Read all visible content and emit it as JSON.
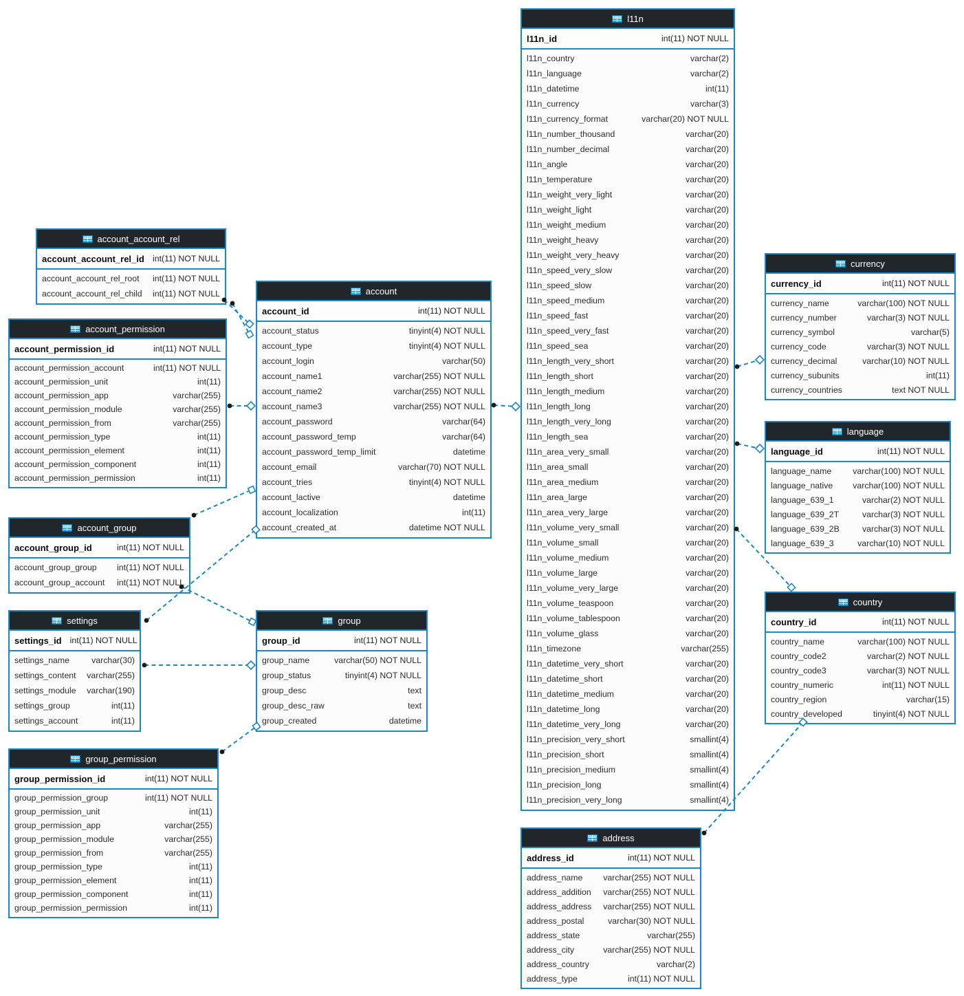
{
  "diagram": {
    "title": "database schema diagram",
    "colors": {
      "accent": "#1789c9",
      "header_bg": "#21262b",
      "header_text": "#ffffff",
      "row_bg": "#fcfcfc",
      "text": "#2b2b2b",
      "line": "#1789c9",
      "dot": "#1b1b1b",
      "icon": "#2ea9e0",
      "icon_light": "#8ed6f5"
    },
    "icon_name": "table-icon",
    "tables": [
      {
        "id": "l11n",
        "title": "l11n",
        "pk": {
          "name": "l11n_id",
          "type": "int(11) NOT NULL"
        },
        "columns": [
          {
            "name": "l11n_country",
            "type": "varchar(2)"
          },
          {
            "name": "l11n_language",
            "type": "varchar(2)"
          },
          {
            "name": "l11n_datetime",
            "type": "int(11)"
          },
          {
            "name": "l11n_currency",
            "type": "varchar(3)"
          },
          {
            "name": "l11n_currency_format",
            "type": "varchar(20) NOT NULL"
          },
          {
            "name": "l11n_number_thousand",
            "type": "varchar(20)"
          },
          {
            "name": "l11n_number_decimal",
            "type": "varchar(20)"
          },
          {
            "name": "l11n_angle",
            "type": "varchar(20)"
          },
          {
            "name": "l11n_temperature",
            "type": "varchar(20)"
          },
          {
            "name": "l11n_weight_very_light",
            "type": "varchar(20)"
          },
          {
            "name": "l11n_weight_light",
            "type": "varchar(20)"
          },
          {
            "name": "l11n_weight_medium",
            "type": "varchar(20)"
          },
          {
            "name": "l11n_weight_heavy",
            "type": "varchar(20)"
          },
          {
            "name": "l11n_weight_very_heavy",
            "type": "varchar(20)"
          },
          {
            "name": "l11n_speed_very_slow",
            "type": "varchar(20)"
          },
          {
            "name": "l11n_speed_slow",
            "type": "varchar(20)"
          },
          {
            "name": "l11n_speed_medium",
            "type": "varchar(20)"
          },
          {
            "name": "l11n_speed_fast",
            "type": "varchar(20)"
          },
          {
            "name": "l11n_speed_very_fast",
            "type": "varchar(20)"
          },
          {
            "name": "l11n_speed_sea",
            "type": "varchar(20)"
          },
          {
            "name": "l11n_length_very_short",
            "type": "varchar(20)"
          },
          {
            "name": "l11n_length_short",
            "type": "varchar(20)"
          },
          {
            "name": "l11n_length_medium",
            "type": "varchar(20)"
          },
          {
            "name": "l11n_length_long",
            "type": "varchar(20)"
          },
          {
            "name": "l11n_length_very_long",
            "type": "varchar(20)"
          },
          {
            "name": "l11n_length_sea",
            "type": "varchar(20)"
          },
          {
            "name": "l11n_area_very_small",
            "type": "varchar(20)"
          },
          {
            "name": "l11n_area_small",
            "type": "varchar(20)"
          },
          {
            "name": "l11n_area_medium",
            "type": "varchar(20)"
          },
          {
            "name": "l11n_area_large",
            "type": "varchar(20)"
          },
          {
            "name": "l11n_area_very_large",
            "type": "varchar(20)"
          },
          {
            "name": "l11n_volume_very_small",
            "type": "varchar(20)"
          },
          {
            "name": "l11n_volume_small",
            "type": "varchar(20)"
          },
          {
            "name": "l11n_volume_medium",
            "type": "varchar(20)"
          },
          {
            "name": "l11n_volume_large",
            "type": "varchar(20)"
          },
          {
            "name": "l11n_volume_very_large",
            "type": "varchar(20)"
          },
          {
            "name": "l11n_volume_teaspoon",
            "type": "varchar(20)"
          },
          {
            "name": "l11n_volume_tablespoon",
            "type": "varchar(20)"
          },
          {
            "name": "l11n_volume_glass",
            "type": "varchar(20)"
          },
          {
            "name": "l11n_timezone",
            "type": "varchar(255)"
          },
          {
            "name": "l11n_datetime_very_short",
            "type": "varchar(20)"
          },
          {
            "name": "l11n_datetime_short",
            "type": "varchar(20)"
          },
          {
            "name": "l11n_datetime_medium",
            "type": "varchar(20)"
          },
          {
            "name": "l11n_datetime_long",
            "type": "varchar(20)"
          },
          {
            "name": "l11n_datetime_very_long",
            "type": "varchar(20)"
          },
          {
            "name": "l11n_precision_very_short",
            "type": "smallint(4)"
          },
          {
            "name": "l11n_precision_short",
            "type": "smallint(4)"
          },
          {
            "name": "l11n_precision_medium",
            "type": "smallint(4)"
          },
          {
            "name": "l11n_precision_long",
            "type": "smallint(4)"
          },
          {
            "name": "l11n_precision_very_long",
            "type": "smallint(4)"
          }
        ]
      },
      {
        "id": "account_account_rel",
        "title": "account_account_rel",
        "pk": {
          "name": "account_account_rel_id",
          "type": "int(11) NOT NULL"
        },
        "columns": [
          {
            "name": "account_account_rel_root",
            "type": "int(11) NOT NULL"
          },
          {
            "name": "account_account_rel_child",
            "type": "int(11) NOT NULL"
          }
        ]
      },
      {
        "id": "account",
        "title": "account",
        "pk": {
          "name": "account_id",
          "type": "int(11) NOT NULL"
        },
        "columns": [
          {
            "name": "account_status",
            "type": "tinyint(4) NOT NULL"
          },
          {
            "name": "account_type",
            "type": "tinyint(4) NOT NULL"
          },
          {
            "name": "account_login",
            "type": "varchar(50)"
          },
          {
            "name": "account_name1",
            "type": "varchar(255) NOT NULL"
          },
          {
            "name": "account_name2",
            "type": "varchar(255) NOT NULL"
          },
          {
            "name": "account_name3",
            "type": "varchar(255) NOT NULL"
          },
          {
            "name": "account_password",
            "type": "varchar(64)"
          },
          {
            "name": "account_password_temp",
            "type": "varchar(64)"
          },
          {
            "name": "account_password_temp_limit",
            "type": "datetime"
          },
          {
            "name": "account_email",
            "type": "varchar(70) NOT NULL"
          },
          {
            "name": "account_tries",
            "type": "tinyint(4) NOT NULL"
          },
          {
            "name": "account_lactive",
            "type": "datetime"
          },
          {
            "name": "account_localization",
            "type": "int(11)"
          },
          {
            "name": "account_created_at",
            "type": "datetime NOT NULL"
          }
        ]
      },
      {
        "id": "account_permission",
        "title": "account_permission",
        "pk": {
          "name": "account_permission_id",
          "type": "int(11) NOT NULL"
        },
        "columns": [
          {
            "name": "account_permission_account",
            "type": "int(11) NOT NULL"
          },
          {
            "name": "account_permission_unit",
            "type": "int(11)"
          },
          {
            "name": "account_permission_app",
            "type": "varchar(255)"
          },
          {
            "name": "account_permission_module",
            "type": "varchar(255)"
          },
          {
            "name": "account_permission_from",
            "type": "varchar(255)"
          },
          {
            "name": "account_permission_type",
            "type": "int(11)"
          },
          {
            "name": "account_permission_element",
            "type": "int(11)"
          },
          {
            "name": "account_permission_component",
            "type": "int(11)"
          },
          {
            "name": "account_permission_permission",
            "type": "int(11)"
          }
        ]
      },
      {
        "id": "account_group",
        "title": "account_group",
        "pk": {
          "name": "account_group_id",
          "type": "int(11) NOT NULL"
        },
        "columns": [
          {
            "name": "account_group_group",
            "type": "int(11) NOT NULL"
          },
          {
            "name": "account_group_account",
            "type": "int(11) NOT NULL"
          }
        ]
      },
      {
        "id": "settings",
        "title": "settings",
        "pk": {
          "name": "settings_id",
          "type": "int(11) NOT NULL"
        },
        "columns": [
          {
            "name": "settings_name",
            "type": "varchar(30)"
          },
          {
            "name": "settings_content",
            "type": "varchar(255)"
          },
          {
            "name": "settings_module",
            "type": "varchar(190)"
          },
          {
            "name": "settings_group",
            "type": "int(11)"
          },
          {
            "name": "settings_account",
            "type": "int(11)"
          }
        ]
      },
      {
        "id": "group",
        "title": "group",
        "pk": {
          "name": "group_id",
          "type": "int(11) NOT NULL"
        },
        "columns": [
          {
            "name": "group_name",
            "type": "varchar(50) NOT NULL"
          },
          {
            "name": "group_status",
            "type": "tinyint(4) NOT NULL"
          },
          {
            "name": "group_desc",
            "type": "text"
          },
          {
            "name": "group_desc_raw",
            "type": "text"
          },
          {
            "name": "group_created",
            "type": "datetime"
          }
        ]
      },
      {
        "id": "group_permission",
        "title": "group_permission",
        "pk": {
          "name": "group_permission_id",
          "type": "int(11) NOT NULL"
        },
        "columns": [
          {
            "name": "group_permission_group",
            "type": "int(11) NOT NULL"
          },
          {
            "name": "group_permission_unit",
            "type": "int(11)"
          },
          {
            "name": "group_permission_app",
            "type": "varchar(255)"
          },
          {
            "name": "group_permission_module",
            "type": "varchar(255)"
          },
          {
            "name": "group_permission_from",
            "type": "varchar(255)"
          },
          {
            "name": "group_permission_type",
            "type": "int(11)"
          },
          {
            "name": "group_permission_element",
            "type": "int(11)"
          },
          {
            "name": "group_permission_component",
            "type": "int(11)"
          },
          {
            "name": "group_permission_permission",
            "type": "int(11)"
          }
        ]
      },
      {
        "id": "currency",
        "title": "currency",
        "pk": {
          "name": "currency_id",
          "type": "int(11) NOT NULL"
        },
        "columns": [
          {
            "name": "currency_name",
            "type": "varchar(100) NOT NULL"
          },
          {
            "name": "currency_number",
            "type": "varchar(3) NOT NULL"
          },
          {
            "name": "currency_symbol",
            "type": "varchar(5)"
          },
          {
            "name": "currency_code",
            "type": "varchar(3) NOT NULL"
          },
          {
            "name": "currency_decimal",
            "type": "varchar(10) NOT NULL"
          },
          {
            "name": "currency_subunits",
            "type": "int(11)"
          },
          {
            "name": "currency_countries",
            "type": "text NOT NULL"
          }
        ]
      },
      {
        "id": "language",
        "title": "language",
        "pk": {
          "name": "language_id",
          "type": "int(11) NOT NULL"
        },
        "columns": [
          {
            "name": "language_name",
            "type": "varchar(100) NOT NULL"
          },
          {
            "name": "language_native",
            "type": "varchar(100) NOT NULL"
          },
          {
            "name": "language_639_1",
            "type": "varchar(2) NOT NULL"
          },
          {
            "name": "language_639_2T",
            "type": "varchar(3) NOT NULL"
          },
          {
            "name": "language_639_2B",
            "type": "varchar(3) NOT NULL"
          },
          {
            "name": "language_639_3",
            "type": "varchar(10) NOT NULL"
          }
        ]
      },
      {
        "id": "country",
        "title": "country",
        "pk": {
          "name": "country_id",
          "type": "int(11) NOT NULL"
        },
        "columns": [
          {
            "name": "country_name",
            "type": "varchar(100) NOT NULL"
          },
          {
            "name": "country_code2",
            "type": "varchar(2) NOT NULL"
          },
          {
            "name": "country_code3",
            "type": "varchar(3) NOT NULL"
          },
          {
            "name": "country_numeric",
            "type": "int(11) NOT NULL"
          },
          {
            "name": "country_region",
            "type": "varchar(15)"
          },
          {
            "name": "country_developed",
            "type": "tinyint(4) NOT NULL"
          }
        ]
      },
      {
        "id": "address",
        "title": "address",
        "pk": {
          "name": "address_id",
          "type": "int(11) NOT NULL"
        },
        "columns": [
          {
            "name": "address_name",
            "type": "varchar(255) NOT NULL"
          },
          {
            "name": "address_addition",
            "type": "varchar(255) NOT NULL"
          },
          {
            "name": "address_address",
            "type": "varchar(255) NOT NULL"
          },
          {
            "name": "address_postal",
            "type": "varchar(30) NOT NULL"
          },
          {
            "name": "address_state",
            "type": "varchar(255)"
          },
          {
            "name": "address_city",
            "type": "varchar(255) NOT NULL"
          },
          {
            "name": "address_country",
            "type": "varchar(2)"
          },
          {
            "name": "address_type",
            "type": "int(11) NOT NULL"
          }
        ]
      }
    ],
    "relations": [
      {
        "from": "account_account_rel",
        "to": "account",
        "end_marker": "square"
      },
      {
        "from": "account_account_rel",
        "to": "account",
        "end_marker": "square"
      },
      {
        "from": "account_permission",
        "to": "account",
        "end_marker": "diamond"
      },
      {
        "from": "account",
        "to": "l11n",
        "end_marker": "diamond"
      },
      {
        "from": "l11n",
        "to": "currency",
        "end_marker": "diamond"
      },
      {
        "from": "l11n",
        "to": "language",
        "end_marker": "diamond"
      },
      {
        "from": "l11n",
        "to": "country",
        "end_marker": "square"
      },
      {
        "from": "address",
        "to": "country",
        "end_marker": "square"
      },
      {
        "from": "settings",
        "to": "group",
        "end_marker": "diamond"
      },
      {
        "from": "account_group",
        "to": "group",
        "end_marker": "square"
      },
      {
        "from": "group_permission",
        "to": "group",
        "end_marker": "square"
      },
      {
        "from": "account_group",
        "to": "account",
        "end_marker": "square"
      },
      {
        "from": "settings",
        "to": "account",
        "end_marker": "square"
      }
    ]
  }
}
